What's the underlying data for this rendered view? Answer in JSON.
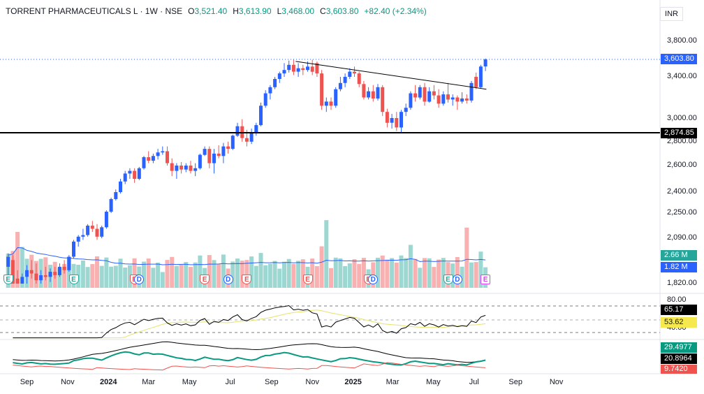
{
  "header": {
    "symbol": "TORRENT PHARMACEUTICALS L · 1W · NSE",
    "open_label": "O",
    "open": "3,521.40",
    "high_label": "H",
    "high": "3,613.90",
    "low_label": "L",
    "low": "3,468.00",
    "close_label": "C",
    "close": "3,603.80",
    "change": "+82.40 (+2.34%)"
  },
  "currency": "INR",
  "colors": {
    "up": "#2962ff",
    "down": "#ef5350",
    "vol_up": "#26a69a",
    "vol_down": "#ef5350",
    "support": "#000000",
    "trendline": "#000000"
  },
  "chart_data": [
    {
      "type": "candlestick",
      "name": "price",
      "ylim": [
        1800,
        3950
      ],
      "yticks": [
        "3,800.00",
        "3,400.00",
        "3,000.00",
        "2,800.00",
        "2,600.00",
        "2,400.00",
        "2,250.00",
        "2,090.00",
        "1,820.00"
      ],
      "last_price_label": "3,603.80",
      "support_level": 2874.85,
      "support_label": "2,874.85",
      "trendline": {
        "start": [
          "2024-10-04",
          3580
        ],
        "end": [
          "2025-07-11",
          3280
        ]
      },
      "candles": [
        {
          "date": "2023-08-04",
          "o": 1920,
          "h": 2000,
          "l": 1800,
          "c": 1980
        },
        {
          "date": "2023-08-11",
          "o": 1960,
          "h": 1990,
          "l": 1800,
          "c": 1820
        },
        {
          "date": "2023-08-18",
          "o": 1850,
          "h": 1900,
          "l": 1800,
          "c": 1810
        },
        {
          "date": "2023-08-25",
          "o": 1810,
          "h": 1880,
          "l": 1800,
          "c": 1860
        },
        {
          "date": "2023-09-01",
          "o": 1860,
          "h": 1930,
          "l": 1820,
          "c": 1900
        },
        {
          "date": "2023-09-08",
          "o": 1900,
          "h": 1960,
          "l": 1850,
          "c": 1880
        },
        {
          "date": "2023-09-15",
          "o": 1880,
          "h": 1940,
          "l": 1820,
          "c": 1840
        },
        {
          "date": "2023-09-22",
          "o": 1840,
          "h": 1900,
          "l": 1800,
          "c": 1870
        },
        {
          "date": "2023-09-29",
          "o": 1870,
          "h": 1920,
          "l": 1840,
          "c": 1860
        },
        {
          "date": "2023-10-06",
          "o": 1860,
          "h": 1910,
          "l": 1830,
          "c": 1890
        },
        {
          "date": "2023-10-13",
          "o": 1890,
          "h": 1920,
          "l": 1850,
          "c": 1870
        },
        {
          "date": "2023-10-20",
          "o": 1870,
          "h": 1940,
          "l": 1860,
          "c": 1920
        },
        {
          "date": "2023-10-27",
          "o": 1920,
          "h": 1960,
          "l": 1880,
          "c": 1900
        },
        {
          "date": "2023-11-03",
          "o": 1900,
          "h": 1990,
          "l": 1890,
          "c": 1980
        },
        {
          "date": "2023-11-10",
          "o": 1980,
          "h": 2080,
          "l": 1970,
          "c": 2070
        },
        {
          "date": "2023-11-17",
          "o": 2070,
          "h": 2110,
          "l": 2040,
          "c": 2100
        },
        {
          "date": "2023-11-24",
          "o": 2100,
          "h": 2150,
          "l": 2080,
          "c": 2110
        },
        {
          "date": "2023-12-01",
          "o": 2110,
          "h": 2180,
          "l": 2100,
          "c": 2170
        },
        {
          "date": "2023-12-08",
          "o": 2170,
          "h": 2200,
          "l": 2130,
          "c": 2150
        },
        {
          "date": "2023-12-15",
          "o": 2150,
          "h": 2180,
          "l": 2080,
          "c": 2100
        },
        {
          "date": "2023-12-22",
          "o": 2100,
          "h": 2170,
          "l": 2090,
          "c": 2160
        },
        {
          "date": "2023-12-29",
          "o": 2160,
          "h": 2270,
          "l": 2150,
          "c": 2260
        },
        {
          "date": "2024-01-05",
          "o": 2260,
          "h": 2360,
          "l": 2250,
          "c": 2350
        },
        {
          "date": "2024-01-12",
          "o": 2350,
          "h": 2420,
          "l": 2340,
          "c": 2400
        },
        {
          "date": "2024-01-19",
          "o": 2400,
          "h": 2500,
          "l": 2390,
          "c": 2480
        },
        {
          "date": "2024-01-26",
          "o": 2480,
          "h": 2560,
          "l": 2460,
          "c": 2540
        },
        {
          "date": "2024-02-02",
          "o": 2540,
          "h": 2580,
          "l": 2500,
          "c": 2560
        },
        {
          "date": "2024-02-09",
          "o": 2560,
          "h": 2580,
          "l": 2470,
          "c": 2500
        },
        {
          "date": "2024-02-16",
          "o": 2500,
          "h": 2590,
          "l": 2490,
          "c": 2580
        },
        {
          "date": "2024-02-23",
          "o": 2580,
          "h": 2680,
          "l": 2570,
          "c": 2670
        },
        {
          "date": "2024-03-01",
          "o": 2670,
          "h": 2720,
          "l": 2620,
          "c": 2640
        },
        {
          "date": "2024-03-08",
          "o": 2640,
          "h": 2700,
          "l": 2620,
          "c": 2680
        },
        {
          "date": "2024-03-15",
          "o": 2680,
          "h": 2740,
          "l": 2650,
          "c": 2710
        },
        {
          "date": "2024-03-22",
          "o": 2710,
          "h": 2760,
          "l": 2690,
          "c": 2720
        },
        {
          "date": "2024-03-29",
          "o": 2720,
          "h": 2760,
          "l": 2600,
          "c": 2620
        },
        {
          "date": "2024-04-05",
          "o": 2620,
          "h": 2660,
          "l": 2520,
          "c": 2560
        },
        {
          "date": "2024-04-12",
          "o": 2560,
          "h": 2620,
          "l": 2500,
          "c": 2600
        },
        {
          "date": "2024-04-19",
          "o": 2600,
          "h": 2630,
          "l": 2540,
          "c": 2570
        },
        {
          "date": "2024-04-26",
          "o": 2570,
          "h": 2620,
          "l": 2550,
          "c": 2600
        },
        {
          "date": "2024-05-03",
          "o": 2600,
          "h": 2640,
          "l": 2540,
          "c": 2560
        },
        {
          "date": "2024-05-10",
          "o": 2560,
          "h": 2620,
          "l": 2520,
          "c": 2580
        },
        {
          "date": "2024-05-17",
          "o": 2580,
          "h": 2700,
          "l": 2570,
          "c": 2690
        },
        {
          "date": "2024-05-24",
          "o": 2690,
          "h": 2760,
          "l": 2680,
          "c": 2740
        },
        {
          "date": "2024-05-31",
          "o": 2740,
          "h": 2760,
          "l": 2580,
          "c": 2620
        },
        {
          "date": "2024-06-07",
          "o": 2620,
          "h": 2740,
          "l": 2540,
          "c": 2700
        },
        {
          "date": "2024-06-14",
          "o": 2700,
          "h": 2770,
          "l": 2660,
          "c": 2680
        },
        {
          "date": "2024-06-21",
          "o": 2680,
          "h": 2790,
          "l": 2620,
          "c": 2760
        },
        {
          "date": "2024-06-28",
          "o": 2760,
          "h": 2800,
          "l": 2700,
          "c": 2740
        },
        {
          "date": "2024-07-05",
          "o": 2740,
          "h": 2860,
          "l": 2730,
          "c": 2850
        },
        {
          "date": "2024-07-12",
          "o": 2850,
          "h": 2960,
          "l": 2840,
          "c": 2930
        },
        {
          "date": "2024-07-19",
          "o": 2930,
          "h": 2990,
          "l": 2800,
          "c": 2830
        },
        {
          "date": "2024-07-26",
          "o": 2830,
          "h": 2900,
          "l": 2760,
          "c": 2800
        },
        {
          "date": "2024-08-02",
          "o": 2800,
          "h": 2910,
          "l": 2780,
          "c": 2880
        },
        {
          "date": "2024-08-09",
          "o": 2880,
          "h": 2960,
          "l": 2850,
          "c": 2940
        },
        {
          "date": "2024-08-16",
          "o": 2940,
          "h": 3150,
          "l": 2930,
          "c": 3120
        },
        {
          "date": "2024-08-23",
          "o": 3120,
          "h": 3270,
          "l": 3100,
          "c": 3240
        },
        {
          "date": "2024-08-30",
          "o": 3240,
          "h": 3320,
          "l": 3180,
          "c": 3300
        },
        {
          "date": "2024-09-06",
          "o": 3300,
          "h": 3400,
          "l": 3280,
          "c": 3380
        },
        {
          "date": "2024-09-13",
          "o": 3380,
          "h": 3460,
          "l": 3340,
          "c": 3440
        },
        {
          "date": "2024-09-20",
          "o": 3440,
          "h": 3560,
          "l": 3400,
          "c": 3480
        },
        {
          "date": "2024-09-27",
          "o": 3480,
          "h": 3590,
          "l": 3450,
          "c": 3540
        },
        {
          "date": "2024-10-04",
          "o": 3540,
          "h": 3600,
          "l": 3420,
          "c": 3460
        },
        {
          "date": "2024-10-11",
          "o": 3460,
          "h": 3560,
          "l": 3400,
          "c": 3500
        },
        {
          "date": "2024-10-18",
          "o": 3500,
          "h": 3540,
          "l": 3420,
          "c": 3480
        },
        {
          "date": "2024-10-25",
          "o": 3480,
          "h": 3580,
          "l": 3460,
          "c": 3520
        },
        {
          "date": "2024-11-01",
          "o": 3520,
          "h": 3600,
          "l": 3420,
          "c": 3460
        },
        {
          "date": "2024-11-08",
          "o": 3560,
          "h": 3580,
          "l": 3400,
          "c": 3440
        },
        {
          "date": "2024-11-15",
          "o": 3440,
          "h": 3480,
          "l": 3080,
          "c": 3120
        },
        {
          "date": "2024-11-22",
          "o": 3120,
          "h": 3200,
          "l": 3060,
          "c": 3160
        },
        {
          "date": "2024-11-29",
          "o": 3160,
          "h": 3200,
          "l": 3080,
          "c": 3120
        },
        {
          "date": "2024-12-06",
          "o": 3120,
          "h": 3300,
          "l": 3100,
          "c": 3280
        },
        {
          "date": "2024-12-13",
          "o": 3280,
          "h": 3400,
          "l": 3260,
          "c": 3340
        },
        {
          "date": "2024-12-20",
          "o": 3340,
          "h": 3440,
          "l": 3300,
          "c": 3400
        },
        {
          "date": "2024-12-27",
          "o": 3400,
          "h": 3500,
          "l": 3380,
          "c": 3460
        },
        {
          "date": "2025-01-03",
          "o": 3460,
          "h": 3520,
          "l": 3400,
          "c": 3440
        },
        {
          "date": "2025-01-10",
          "o": 3440,
          "h": 3460,
          "l": 3300,
          "c": 3330
        },
        {
          "date": "2025-01-17",
          "o": 3330,
          "h": 3360,
          "l": 3180,
          "c": 3200
        },
        {
          "date": "2025-01-24",
          "o": 3200,
          "h": 3300,
          "l": 3180,
          "c": 3260
        },
        {
          "date": "2025-01-31",
          "o": 3260,
          "h": 3320,
          "l": 3160,
          "c": 3190
        },
        {
          "date": "2025-02-07",
          "o": 3190,
          "h": 3330,
          "l": 3170,
          "c": 3300
        },
        {
          "date": "2025-02-14",
          "o": 3300,
          "h": 3320,
          "l": 3020,
          "c": 3060
        },
        {
          "date": "2025-02-21",
          "o": 3060,
          "h": 3090,
          "l": 2920,
          "c": 2960
        },
        {
          "date": "2025-02-28",
          "o": 2960,
          "h": 3040,
          "l": 2910,
          "c": 3000
        },
        {
          "date": "2025-03-07",
          "o": 3000,
          "h": 3060,
          "l": 2890,
          "c": 2920
        },
        {
          "date": "2025-03-14",
          "o": 2920,
          "h": 3080,
          "l": 2880,
          "c": 3060
        },
        {
          "date": "2025-03-21",
          "o": 3060,
          "h": 3140,
          "l": 3020,
          "c": 3100
        },
        {
          "date": "2025-03-28",
          "o": 3100,
          "h": 3260,
          "l": 3080,
          "c": 3240
        },
        {
          "date": "2025-04-04",
          "o": 3240,
          "h": 3320,
          "l": 3160,
          "c": 3200
        },
        {
          "date": "2025-04-11",
          "o": 3200,
          "h": 3320,
          "l": 3180,
          "c": 3300
        },
        {
          "date": "2025-04-18",
          "o": 3300,
          "h": 3340,
          "l": 3120,
          "c": 3160
        },
        {
          "date": "2025-04-25",
          "o": 3160,
          "h": 3300,
          "l": 3150,
          "c": 3260
        },
        {
          "date": "2025-05-02",
          "o": 3260,
          "h": 3320,
          "l": 3180,
          "c": 3220
        },
        {
          "date": "2025-05-09",
          "o": 3220,
          "h": 3280,
          "l": 3100,
          "c": 3140
        },
        {
          "date": "2025-05-16",
          "o": 3140,
          "h": 3260,
          "l": 3120,
          "c": 3230
        },
        {
          "date": "2025-05-23",
          "o": 3230,
          "h": 3340,
          "l": 3150,
          "c": 3180
        },
        {
          "date": "2025-05-30",
          "o": 3180,
          "h": 3230,
          "l": 3120,
          "c": 3200
        },
        {
          "date": "2025-06-06",
          "o": 3200,
          "h": 3220,
          "l": 3080,
          "c": 3160
        },
        {
          "date": "2025-06-13",
          "o": 3160,
          "h": 3250,
          "l": 3140,
          "c": 3190
        },
        {
          "date": "2025-06-20",
          "o": 3190,
          "h": 3230,
          "l": 3140,
          "c": 3170
        },
        {
          "date": "2025-06-27",
          "o": 3170,
          "h": 3360,
          "l": 3150,
          "c": 3340
        },
        {
          "date": "2025-07-04",
          "o": 3400,
          "h": 3450,
          "l": 3280,
          "c": 3300
        },
        {
          "date": "2025-07-11",
          "o": 3300,
          "h": 3540,
          "l": 3290,
          "c": 3521
        },
        {
          "date": "2025-07-18",
          "o": 3521.4,
          "h": 3613.9,
          "l": 3468,
          "c": 3603.8
        }
      ],
      "events": [
        {
          "date": "2023-08-04",
          "type": "E"
        },
        {
          "date": "2023-11-10",
          "type": "E"
        },
        {
          "date": "2024-02-09",
          "type": "Er"
        },
        {
          "date": "2024-02-16",
          "type": "D"
        },
        {
          "date": "2024-05-24",
          "type": "Er"
        },
        {
          "date": "2024-06-28",
          "type": "D"
        },
        {
          "date": "2024-07-26",
          "type": "Er"
        },
        {
          "date": "2024-10-25",
          "type": "Er"
        },
        {
          "date": "2025-01-24",
          "type": "Er"
        },
        {
          "date": "2025-01-31",
          "type": "D"
        },
        {
          "date": "2025-05-23",
          "type": "E"
        },
        {
          "date": "2025-06-06",
          "type": "D"
        },
        {
          "date": "2025-07-18",
          "type": "Ep"
        }
      ]
    },
    {
      "type": "bar",
      "name": "volume",
      "current_label": "2.66 M",
      "average_label": "1.82 M"
    },
    {
      "type": "line",
      "name": "rsi",
      "ylim": [
        20,
        90
      ],
      "yticks": [
        "80.00",
        "40.00"
      ],
      "value_label": "65.17",
      "ma_label": "53.62"
    },
    {
      "type": "line",
      "name": "dmi",
      "labels": [
        "29.4977",
        "20.8964",
        "9.7420"
      ]
    }
  ],
  "xaxis": {
    "ticks": [
      {
        "date": "2023-09-01",
        "label": "Sep",
        "bold": false
      },
      {
        "date": "2023-11-01",
        "label": "Nov",
        "bold": false
      },
      {
        "date": "2024-01-01",
        "label": "2024",
        "bold": true
      },
      {
        "date": "2024-03-01",
        "label": "Mar",
        "bold": false
      },
      {
        "date": "2024-05-01",
        "label": "May",
        "bold": false
      },
      {
        "date": "2024-07-01",
        "label": "Jul",
        "bold": false
      },
      {
        "date": "2024-09-01",
        "label": "Sep",
        "bold": false
      },
      {
        "date": "2024-11-01",
        "label": "Nov",
        "bold": false
      },
      {
        "date": "2025-01-01",
        "label": "2025",
        "bold": true
      },
      {
        "date": "2025-03-01",
        "label": "Mar",
        "bold": false
      },
      {
        "date": "2025-05-01",
        "label": "May",
        "bold": false
      },
      {
        "date": "2025-07-01",
        "label": "Jul",
        "bold": false
      },
      {
        "date": "2025-09-01",
        "label": "Sep",
        "bold": false
      },
      {
        "date": "2025-11-01",
        "label": "Nov",
        "bold": false
      }
    ]
  }
}
